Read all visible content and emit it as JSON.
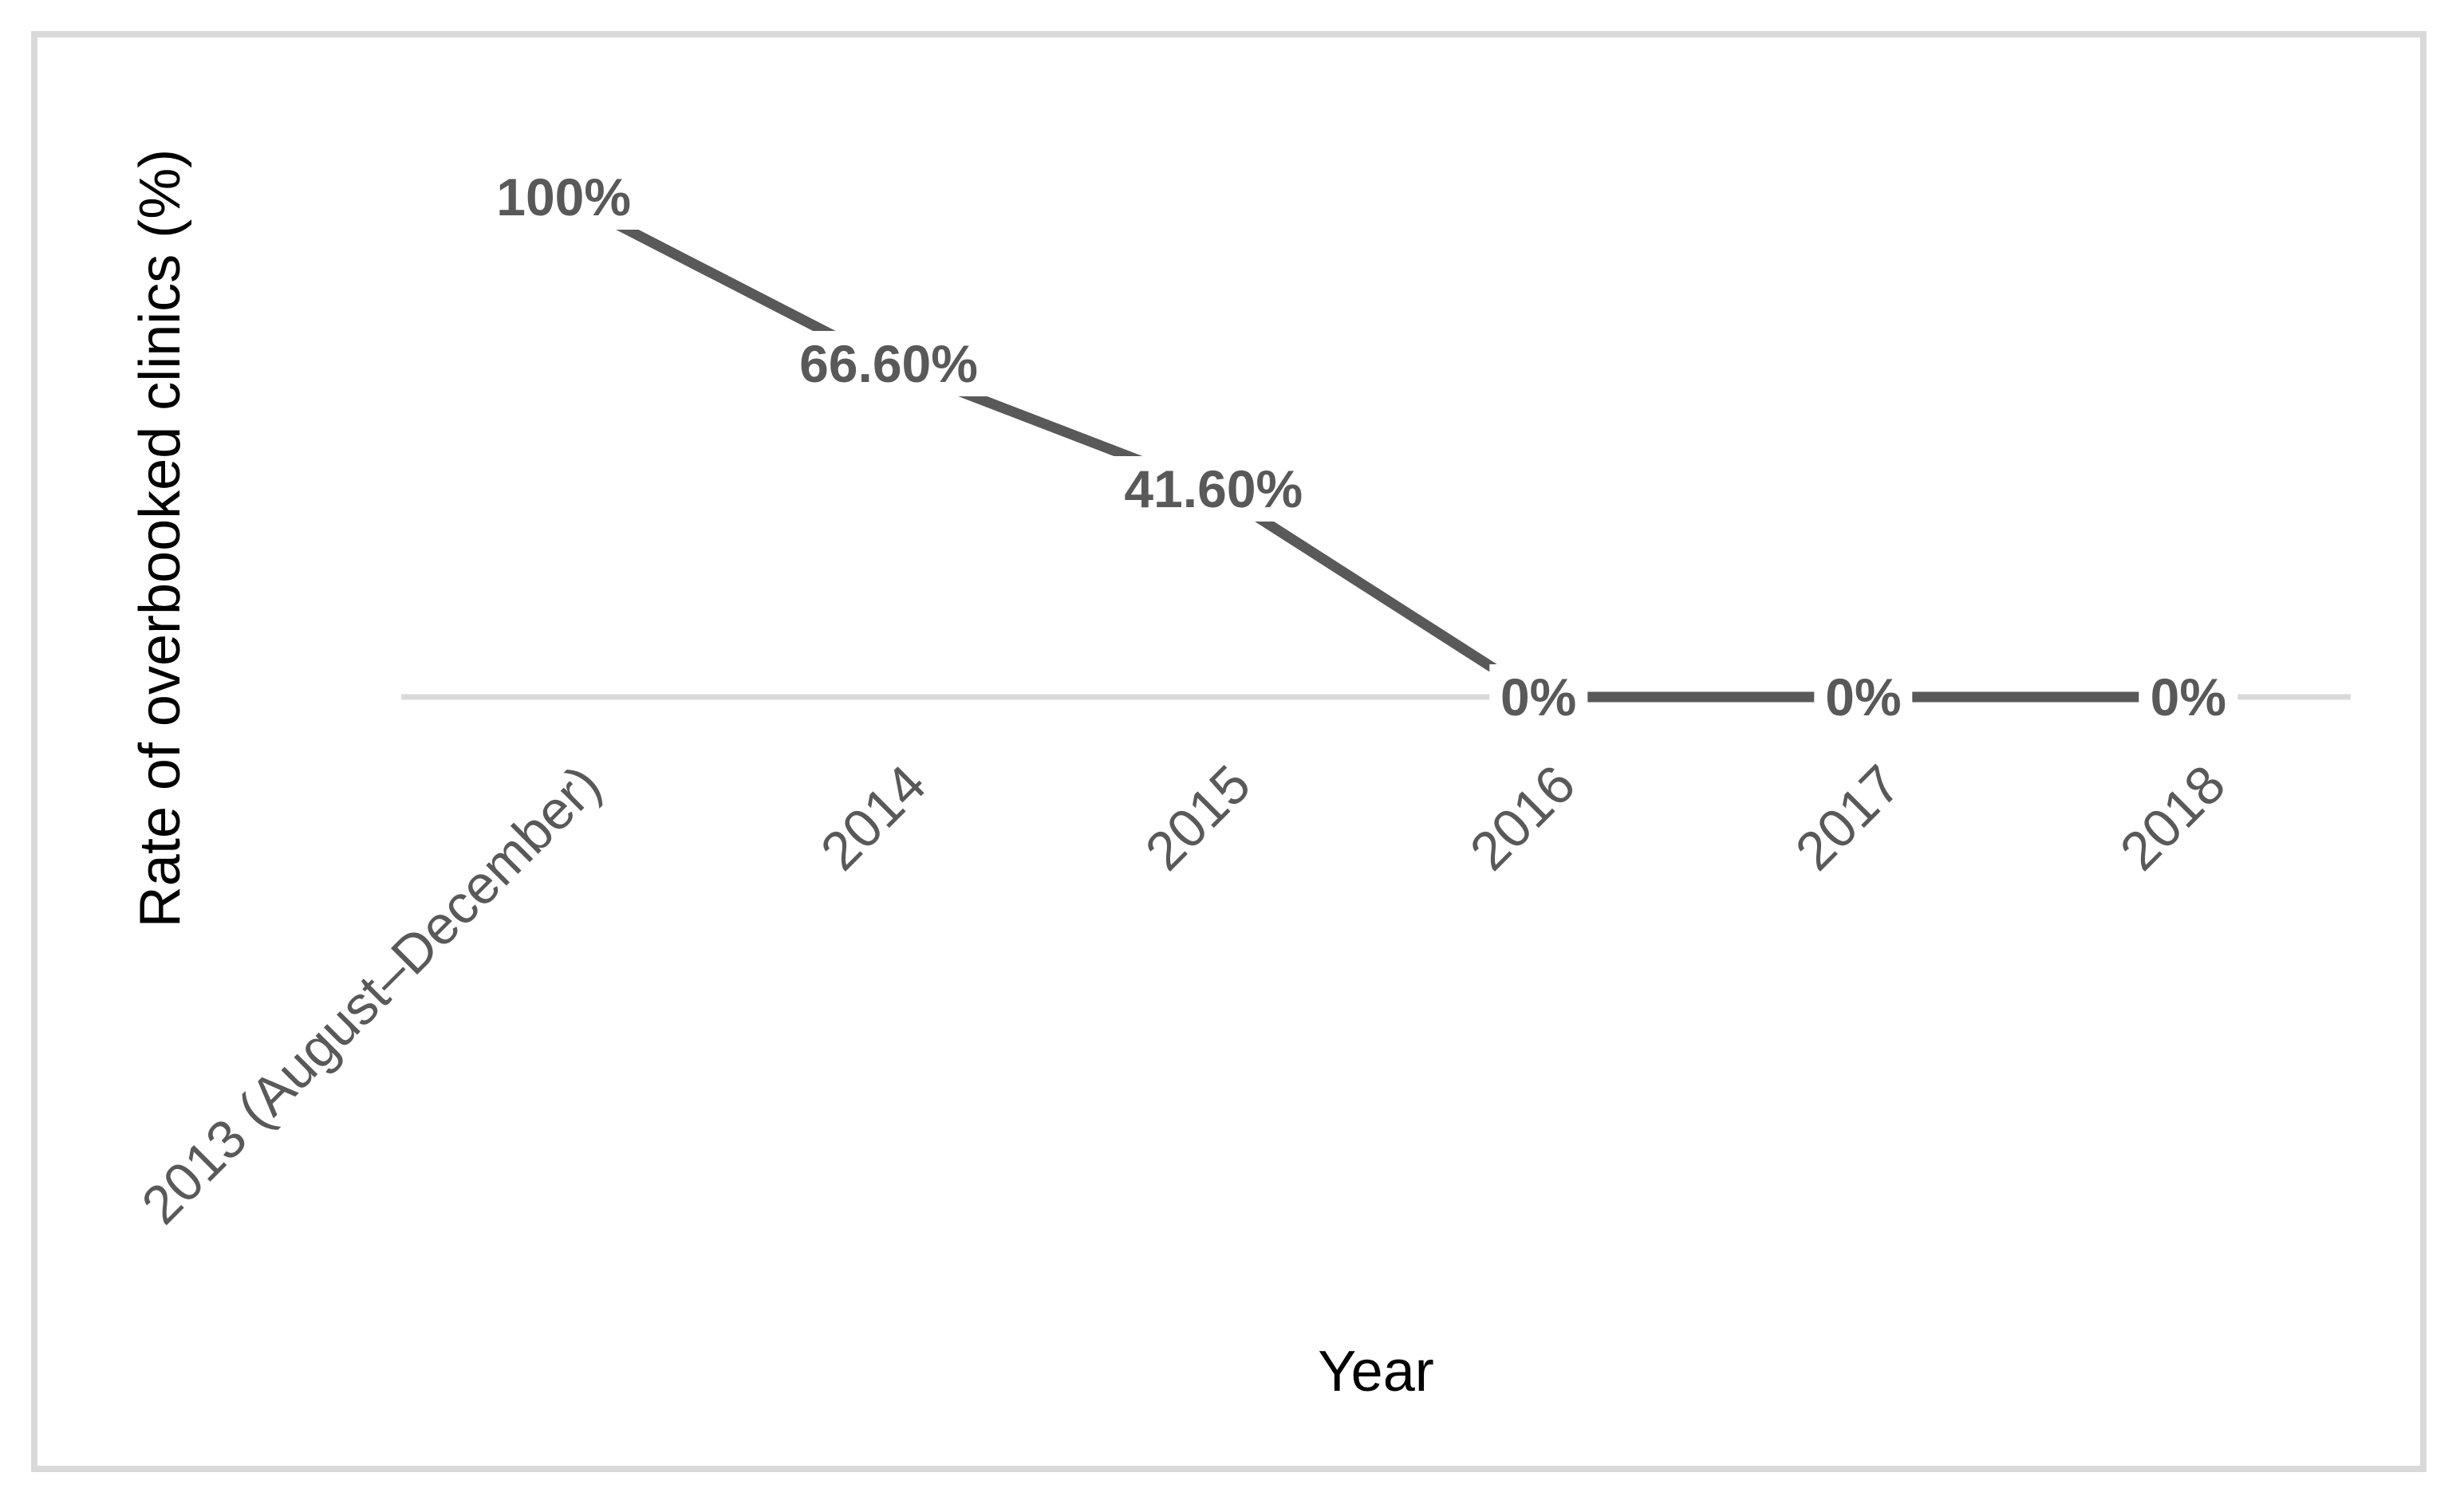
{
  "figure": {
    "background_color": "#ffffff",
    "border_color": "#d9d9d9"
  },
  "chart_data": {
    "type": "line",
    "title": "",
    "categories": [
      "2013 (August–December)",
      "2014",
      "2015",
      "2016",
      "2017",
      "2018"
    ],
    "series": [
      {
        "name": "Rate of overbooked clinics",
        "values": [
          100,
          66.6,
          41.6,
          0,
          0,
          0
        ]
      }
    ],
    "data_labels": [
      "100%",
      "66.60%",
      "41.60%",
      "0%",
      "0%",
      "0%"
    ],
    "xlabel": "Year",
    "ylabel": "Rate of overbooked clinics (%)",
    "ylim": [
      0,
      100
    ],
    "grid": false,
    "legend": "none",
    "x_tick_rotation_deg": 45,
    "line_color": "#595959",
    "data_label_color": "#595959",
    "tick_label_color": "#595959",
    "axis_line_color": "#d9d9d9",
    "axis_title_color": "#000000"
  }
}
